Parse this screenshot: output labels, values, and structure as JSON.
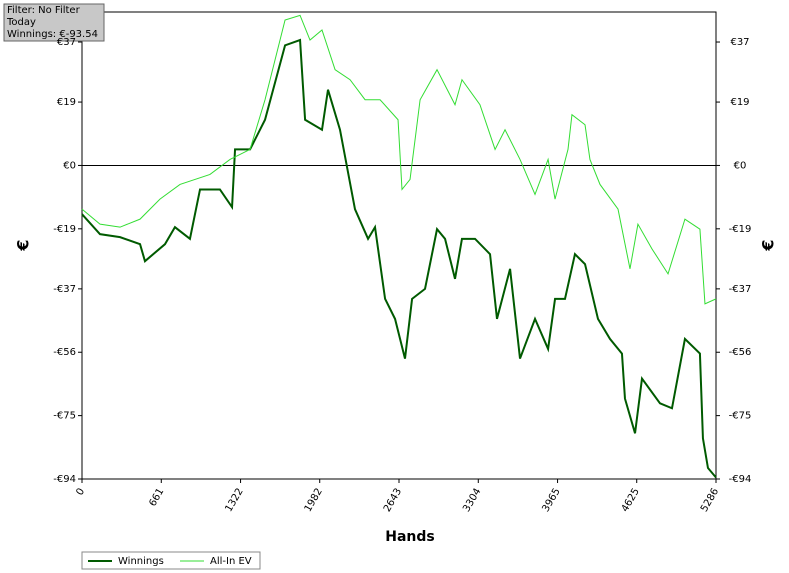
{
  "chart_data": {
    "type": "line",
    "xlabel": "Hands",
    "ylabel": "€",
    "annotations": [
      "Filter: No Filter",
      "Today",
      "Winnings: €-93.54"
    ],
    "xlim": [
      0,
      5286
    ],
    "xticks": [
      0,
      661,
      1322,
      1982,
      2643,
      3304,
      3965,
      4625,
      5286
    ],
    "ylim": [
      -94,
      46
    ],
    "yticks": [
      {
        "value": -94,
        "label": "-€94"
      },
      {
        "value": -75,
        "label": "-€75"
      },
      {
        "value": -56,
        "label": "-€56"
      },
      {
        "value": -37,
        "label": "-€37"
      },
      {
        "value": -19,
        "label": "-€19"
      },
      {
        "value": 0,
        "label": "€0"
      },
      {
        "value": 19,
        "label": "€19"
      },
      {
        "value": 37,
        "label": "€37"
      }
    ],
    "zero_line": true,
    "grid": false,
    "legend": "bottom-left",
    "series": [
      {
        "name": "Winnings",
        "color": "#005a00",
        "x": [
          0,
          150,
          317,
          484,
          525,
          692,
          775,
          900,
          984,
          1150,
          1251,
          1276,
          1401,
          1526,
          1693,
          1818,
          1860,
          2001,
          2051,
          2151,
          2276,
          2385,
          2443,
          2527,
          2610,
          2693,
          2752,
          2860,
          2960,
          3027,
          3110,
          3168,
          3277,
          3402,
          3460,
          3569,
          3652,
          3777,
          3886,
          3944,
          4027,
          4110,
          4194,
          4302,
          4402,
          4502,
          4527,
          4611,
          4669,
          4819,
          4919,
          5027,
          5152,
          5177,
          5219,
          5286
        ],
        "values": [
          -14.6,
          -20.6,
          -21.5,
          -23.6,
          -28.7,
          -23.6,
          -18.5,
          -22,
          -7.2,
          -7.2,
          -12.5,
          4.8,
          4.8,
          13.7,
          36,
          37.6,
          13.7,
          10.7,
          22.7,
          10.7,
          -13.1,
          -22,
          -18.5,
          -40,
          -46,
          -57.9,
          -40,
          -37,
          -19.1,
          -22,
          -34,
          -22,
          -22,
          -26.6,
          -46,
          -31,
          -57.9,
          -46,
          -55,
          -40,
          -40,
          -26.6,
          -29.6,
          -46,
          -52,
          -56.4,
          -69.9,
          -80.3,
          -63.9,
          -71.3,
          -72.8,
          -52,
          -56.4,
          -81.8,
          -90.7,
          -93.54
        ]
      },
      {
        "name": "All-In EV",
        "color": "#33dd33",
        "x": [
          0,
          150,
          317,
          484,
          650,
          817,
          1067,
          1234,
          1401,
          1526,
          1693,
          1818,
          1901,
          2001,
          2110,
          2235,
          2360,
          2485,
          2635,
          2668,
          2735,
          2819,
          2960,
          3110,
          3168,
          3318,
          3444,
          3527,
          3652,
          3777,
          3886,
          3944,
          4052,
          4085,
          4194,
          4235,
          4319,
          4469,
          4569,
          4635,
          4752,
          4886,
          5027,
          5152,
          5194,
          5286
        ],
        "values": [
          -13.1,
          -17.6,
          -18.5,
          -16.1,
          -10.1,
          -5.7,
          -2.7,
          1.8,
          4.8,
          19.7,
          43.6,
          45,
          37.6,
          40.6,
          28.7,
          25.7,
          19.7,
          19.7,
          13.7,
          -7.2,
          -4.2,
          19.7,
          28.7,
          18.2,
          25.7,
          18.2,
          4.8,
          10.7,
          1.8,
          -8.7,
          1.8,
          -10.1,
          4.8,
          15.2,
          12.2,
          1.8,
          -5.7,
          -13.1,
          -31,
          -17.6,
          -25,
          -32.5,
          -16.1,
          -19.1,
          -41.5,
          -40
        ]
      }
    ]
  }
}
